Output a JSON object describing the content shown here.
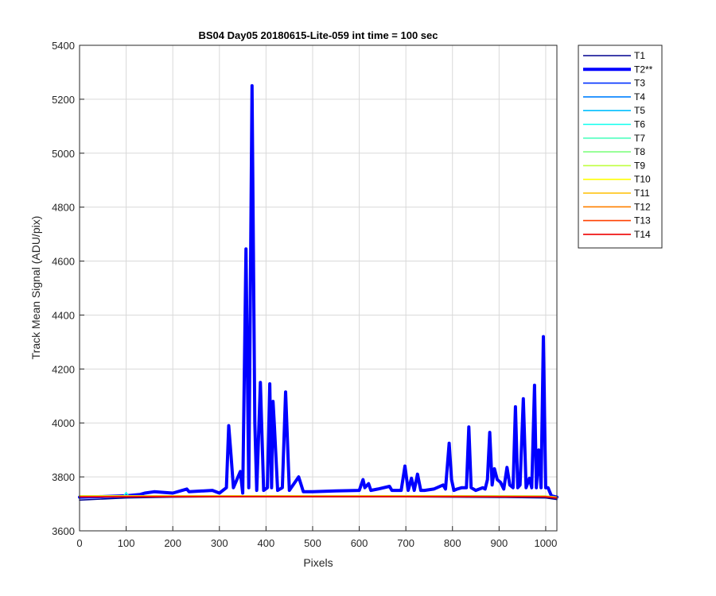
{
  "chart_data": {
    "type": "line",
    "title": "BS04 Day05 20180615-Lite-059 int time = 100 sec",
    "xlabel": "Pixels",
    "ylabel": "Track Mean Signal (ADU/pix)",
    "xlim": [
      0,
      1024
    ],
    "ylim": [
      3600,
      5400
    ],
    "xticks": [
      0,
      100,
      200,
      300,
      400,
      500,
      600,
      700,
      800,
      900,
      1000
    ],
    "yticks": [
      3600,
      3800,
      4000,
      4200,
      4400,
      4600,
      4800,
      5000,
      5200,
      5400
    ],
    "grid": true,
    "legend_position": "outside-right",
    "series": [
      {
        "name": "T1",
        "color": "#00008f",
        "emphasized": false,
        "x": [
          0,
          100,
          200,
          300,
          400,
          500,
          600,
          700,
          800,
          900,
          1000,
          1024
        ],
        "y": [
          3714,
          3722,
          3725,
          3726,
          3726,
          3726,
          3726,
          3726,
          3725,
          3724,
          3722,
          3716
        ]
      },
      {
        "name": "T2**",
        "color": "#0000ff",
        "emphasized": true,
        "x": [
          0,
          50,
          100,
          130,
          140,
          160,
          200,
          230,
          235,
          285,
          300,
          315,
          320,
          325,
          330,
          345,
          350,
          357,
          363,
          370,
          376,
          380,
          388,
          395,
          403,
          408,
          412,
          415,
          418,
          425,
          435,
          442,
          450,
          470,
          480,
          500,
          550,
          600,
          608,
          612,
          620,
          625,
          640,
          665,
          670,
          690,
          698,
          705,
          712,
          718,
          725,
          732,
          740,
          760,
          780,
          785,
          793,
          798,
          803,
          810,
          820,
          830,
          835,
          840,
          850,
          865,
          870,
          875,
          880,
          885,
          890,
          896,
          903,
          910,
          917,
          923,
          930,
          935,
          940,
          945,
          952,
          958,
          965,
          970,
          976,
          980,
          985,
          990,
          995,
          1000,
          1005,
          1012,
          1024
        ],
        "y": [
          3725,
          3727,
          3730,
          3735,
          3740,
          3745,
          3740,
          3755,
          3745,
          3750,
          3740,
          3760,
          3990,
          3880,
          3760,
          3820,
          3740,
          4645,
          3760,
          5250,
          4000,
          3750,
          4150,
          3750,
          3760,
          4145,
          3760,
          4080,
          3990,
          3750,
          3760,
          4115,
          3750,
          3800,
          3745,
          3745,
          3748,
          3750,
          3790,
          3760,
          3775,
          3750,
          3755,
          3765,
          3750,
          3750,
          3840,
          3750,
          3795,
          3750,
          3810,
          3750,
          3750,
          3755,
          3770,
          3755,
          3925,
          3790,
          3750,
          3755,
          3760,
          3760,
          3985,
          3760,
          3750,
          3760,
          3755,
          3790,
          3965,
          3770,
          3830,
          3790,
          3780,
          3755,
          3835,
          3770,
          3760,
          4060,
          3760,
          3770,
          4090,
          3760,
          3795,
          3760,
          4140,
          3760,
          3900,
          3760,
          4320,
          3760,
          3760,
          3730,
          3725
        ]
      },
      {
        "name": "T3",
        "color": "#0030ff",
        "emphasized": false,
        "x": [
          0,
          200,
          400,
          600,
          800,
          1000,
          1024
        ],
        "y": [
          3727,
          3728,
          3728,
          3728,
          3728,
          3726,
          3722
        ]
      },
      {
        "name": "T4",
        "color": "#0080ff",
        "emphasized": false,
        "x": [
          0,
          200,
          400,
          600,
          800,
          1000,
          1024
        ],
        "y": [
          3728,
          3729,
          3729,
          3729,
          3728,
          3727,
          3723
        ]
      },
      {
        "name": "T5",
        "color": "#00bfff",
        "emphasized": false,
        "x": [
          0,
          200,
          400,
          600,
          800,
          1000,
          1024
        ],
        "y": [
          3729,
          3729,
          3729,
          3729,
          3729,
          3728,
          3724
        ]
      },
      {
        "name": "T6",
        "color": "#10ffef",
        "emphasized": false,
        "x": [
          0,
          95,
          100,
          105,
          200,
          400,
          600,
          800,
          1000,
          1024
        ],
        "y": [
          3730,
          3730,
          3742,
          3730,
          3730,
          3730,
          3730,
          3730,
          3728,
          3724
        ]
      },
      {
        "name": "T7",
        "color": "#50ffbf",
        "emphasized": false,
        "x": [
          0,
          200,
          400,
          600,
          800,
          1000,
          1024
        ],
        "y": [
          3730,
          3730,
          3730,
          3730,
          3730,
          3729,
          3725
        ]
      },
      {
        "name": "T8",
        "color": "#80ff80",
        "emphasized": false,
        "x": [
          0,
          200,
          400,
          600,
          800,
          1000,
          1024
        ],
        "y": [
          3730,
          3730,
          3730,
          3730,
          3730,
          3729,
          3725
        ]
      },
      {
        "name": "T9",
        "color": "#bfff40",
        "emphasized": false,
        "x": [
          0,
          200,
          400,
          600,
          800,
          1000,
          1024
        ],
        "y": [
          3729,
          3730,
          3730,
          3730,
          3730,
          3729,
          3725
        ]
      },
      {
        "name": "T10",
        "color": "#ffff00",
        "emphasized": false,
        "x": [
          0,
          200,
          400,
          600,
          800,
          1000,
          1024
        ],
        "y": [
          3729,
          3729,
          3729,
          3729,
          3729,
          3728,
          3724
        ]
      },
      {
        "name": "T11",
        "color": "#ffbf00",
        "emphasized": false,
        "x": [
          0,
          200,
          400,
          600,
          800,
          1000,
          1024
        ],
        "y": [
          3728,
          3729,
          3729,
          3729,
          3729,
          3728,
          3724
        ]
      },
      {
        "name": "T12",
        "color": "#ff8000",
        "emphasized": false,
        "x": [
          0,
          200,
          400,
          600,
          800,
          1000,
          1024
        ],
        "y": [
          3727,
          3728,
          3728,
          3728,
          3728,
          3727,
          3723
        ]
      },
      {
        "name": "T13",
        "color": "#ff4000",
        "emphasized": false,
        "x": [
          0,
          200,
          400,
          600,
          800,
          1000,
          1024
        ],
        "y": [
          3726,
          3727,
          3727,
          3727,
          3727,
          3726,
          3722
        ]
      },
      {
        "name": "T14",
        "color": "#ee0000",
        "emphasized": false,
        "x": [
          0,
          200,
          400,
          600,
          800,
          1000,
          1024
        ],
        "y": [
          3726,
          3727,
          3727,
          3727,
          3727,
          3726,
          3721
        ]
      }
    ]
  }
}
